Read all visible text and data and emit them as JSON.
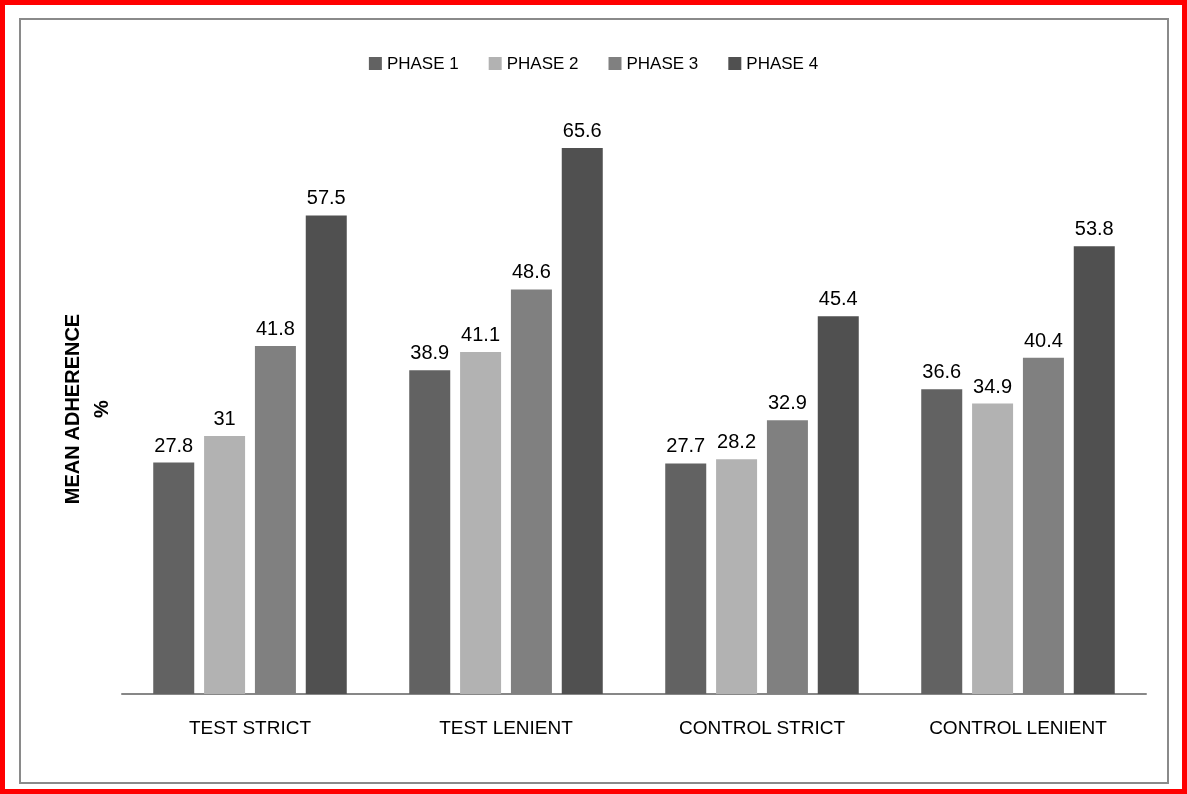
{
  "chart_data": {
    "type": "bar",
    "ylabel": "MEAN ADHERENCE %",
    "categories": [
      "TEST STRICT",
      "TEST LENIENT",
      "CONTROL STRICT",
      "CONTROL LENIENT"
    ],
    "series": [
      {
        "name": "PHASE 1",
        "color": "#626262",
        "values": [
          27.8,
          38.9,
          27.7,
          36.6
        ]
      },
      {
        "name": "PHASE 2",
        "color": "#b2b2b2",
        "values": [
          31,
          41.1,
          28.2,
          34.9
        ]
      },
      {
        "name": "PHASE 3",
        "color": "#808080",
        "values": [
          41.8,
          48.6,
          32.9,
          40.4
        ]
      },
      {
        "name": "PHASE 4",
        "color": "#505050",
        "values": [
          57.5,
          65.6,
          45.4,
          53.8
        ]
      }
    ],
    "data_labels": true,
    "legend": "top",
    "grid": false,
    "tick_labels": "x"
  }
}
